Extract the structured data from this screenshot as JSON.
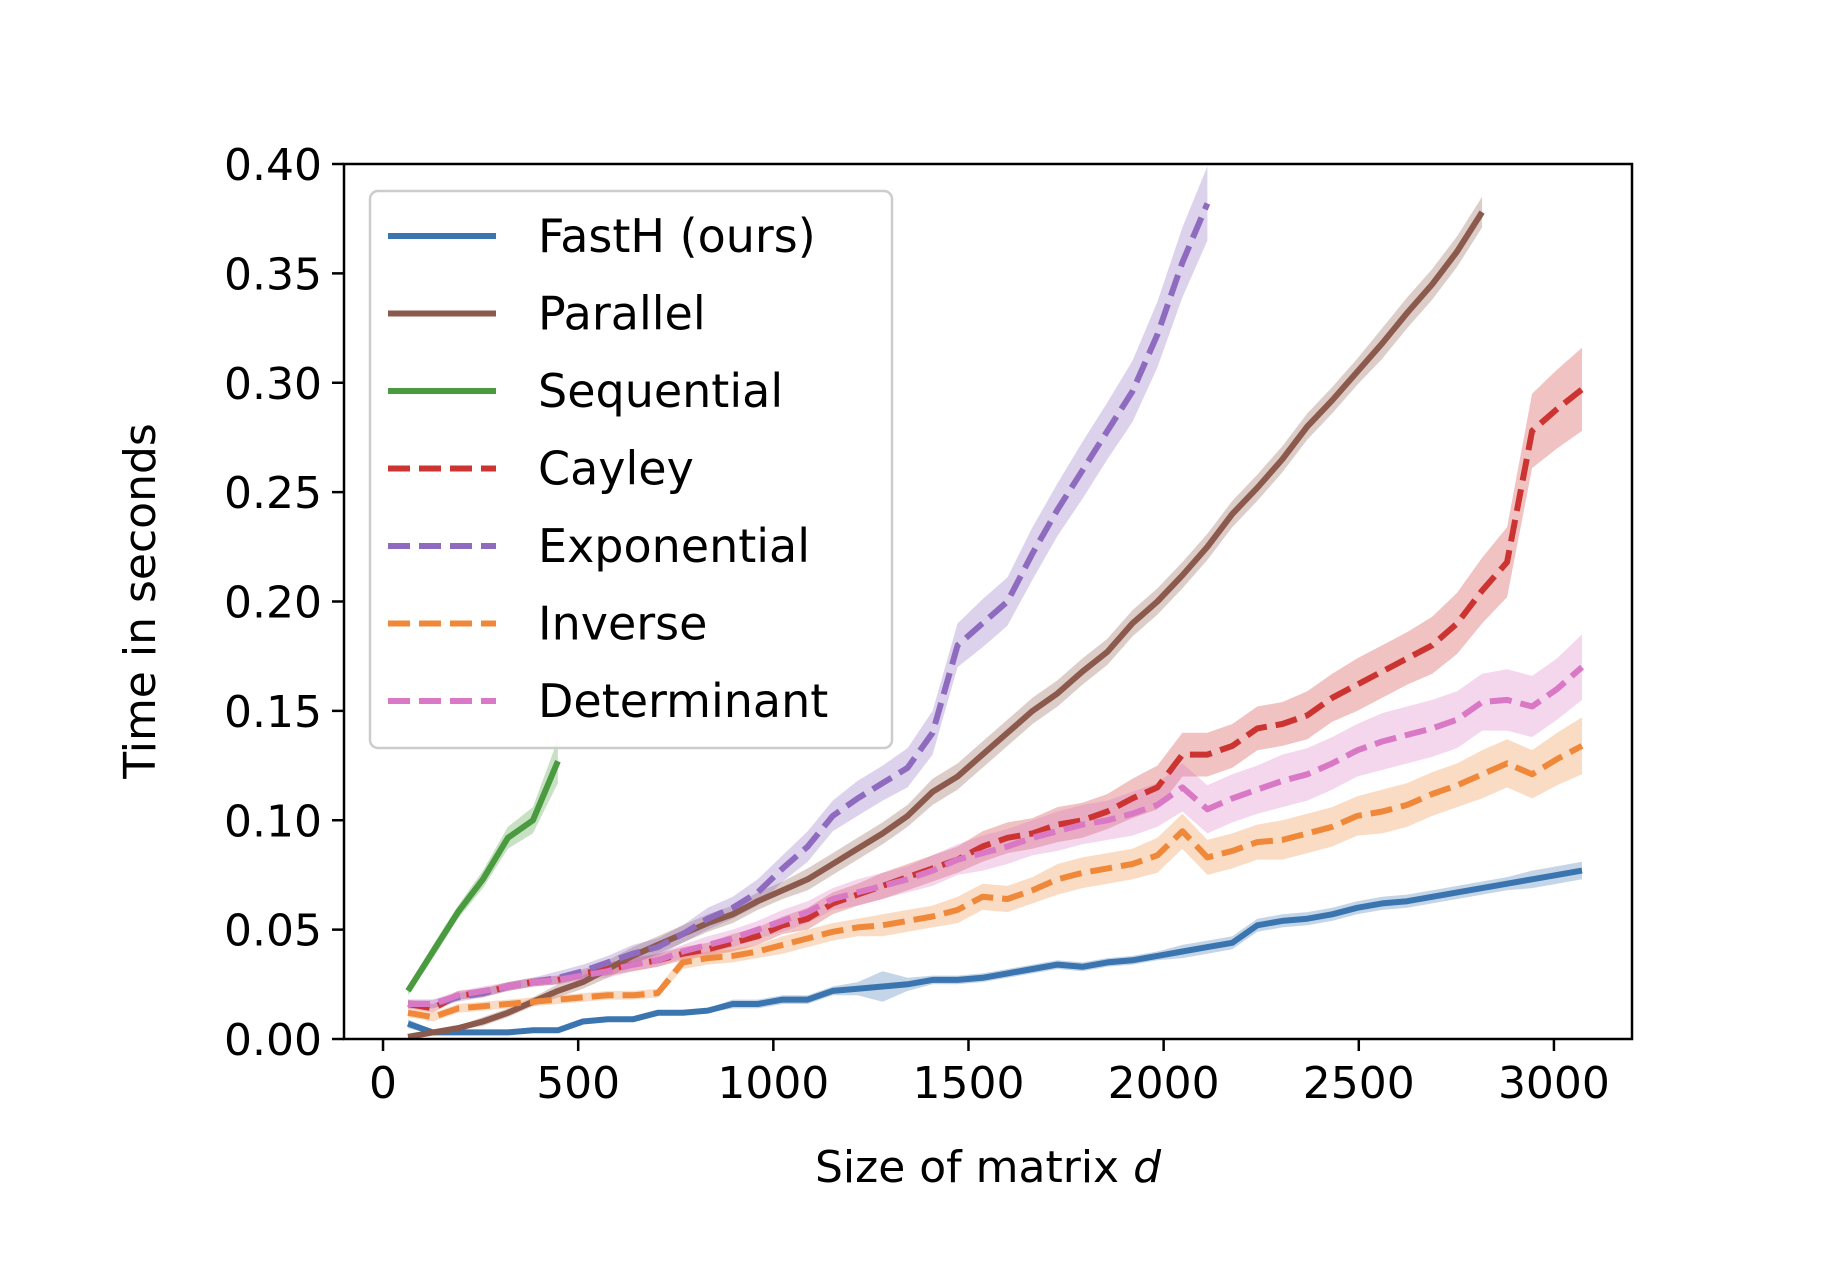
{
  "chart_data": {
    "type": "line",
    "xlabel": "Size of matrix",
    "xlabel_var": "d",
    "ylabel": "Time in seconds",
    "xlim": [
      -100,
      3200
    ],
    "ylim": [
      0,
      0.4
    ],
    "xticks": [
      0,
      500,
      1000,
      1500,
      2000,
      2500,
      3000
    ],
    "yticks": [
      0.0,
      0.05,
      0.1,
      0.15,
      0.2,
      0.25,
      0.3,
      0.35,
      0.4
    ],
    "xtick_labels": [
      "0",
      "500",
      "1000",
      "1500",
      "2000",
      "2500",
      "3000"
    ],
    "ytick_labels": [
      "0.00",
      "0.05",
      "0.10",
      "0.15",
      "0.20",
      "0.25",
      "0.30",
      "0.35",
      "0.40"
    ],
    "grid": false,
    "legend_position": "upper-left",
    "series": [
      {
        "name": "FastH (ours)",
        "color": "#3a75b0",
        "dash": "solid",
        "x": [
          64,
          128,
          192,
          256,
          320,
          384,
          448,
          512,
          576,
          640,
          704,
          768,
          832,
          896,
          960,
          1024,
          1088,
          1152,
          1216,
          1280,
          1344,
          1408,
          1472,
          1536,
          1600,
          1664,
          1728,
          1792,
          1856,
          1920,
          1984,
          2048,
          2112,
          2176,
          2240,
          2304,
          2368,
          2432,
          2496,
          2560,
          2624,
          2688,
          2752,
          2816,
          2880,
          2944,
          3008,
          3072
        ],
        "y": [
          0.007,
          0.003,
          0.003,
          0.003,
          0.003,
          0.004,
          0.004,
          0.008,
          0.009,
          0.009,
          0.012,
          0.012,
          0.013,
          0.016,
          0.016,
          0.018,
          0.018,
          0.022,
          0.023,
          0.024,
          0.025,
          0.027,
          0.027,
          0.028,
          0.03,
          0.032,
          0.034,
          0.033,
          0.035,
          0.036,
          0.038,
          0.04,
          0.042,
          0.044,
          0.052,
          0.054,
          0.055,
          0.057,
          0.06,
          0.062,
          0.063,
          0.065,
          0.067,
          0.069,
          0.071,
          0.073,
          0.075,
          0.077
        ],
        "band": [
          0.002,
          0.001,
          0.001,
          0.001,
          0.001,
          0.001,
          0.001,
          0.001,
          0.001,
          0.001,
          0.001,
          0.001,
          0.001,
          0.002,
          0.002,
          0.002,
          0.002,
          0.002,
          0.003,
          0.007,
          0.003,
          0.002,
          0.002,
          0.002,
          0.002,
          0.002,
          0.002,
          0.002,
          0.002,
          0.002,
          0.002,
          0.003,
          0.003,
          0.003,
          0.003,
          0.003,
          0.003,
          0.003,
          0.003,
          0.003,
          0.003,
          0.003,
          0.003,
          0.003,
          0.003,
          0.004,
          0.004,
          0.004
        ]
      },
      {
        "name": "Parallel",
        "color": "#8b5a4c",
        "dash": "solid",
        "x": [
          64,
          128,
          192,
          256,
          320,
          384,
          448,
          512,
          576,
          640,
          704,
          768,
          832,
          896,
          960,
          1024,
          1088,
          1152,
          1216,
          1280,
          1344,
          1408,
          1472,
          1536,
          1600,
          1664,
          1728,
          1792,
          1856,
          1920,
          1984,
          2048,
          2112,
          2176,
          2240,
          2304,
          2368,
          2432,
          2496,
          2560,
          2624,
          2688,
          2752,
          2816
        ],
        "y": [
          0.001,
          0.003,
          0.005,
          0.008,
          0.012,
          0.017,
          0.022,
          0.026,
          0.032,
          0.038,
          0.043,
          0.048,
          0.053,
          0.057,
          0.063,
          0.068,
          0.073,
          0.08,
          0.087,
          0.094,
          0.102,
          0.113,
          0.12,
          0.13,
          0.14,
          0.15,
          0.158,
          0.168,
          0.177,
          0.19,
          0.2,
          0.212,
          0.225,
          0.24,
          0.252,
          0.265,
          0.28,
          0.292,
          0.305,
          0.318,
          0.332,
          0.345,
          0.36,
          0.378
        ],
        "band": [
          0.001,
          0.001,
          0.001,
          0.002,
          0.002,
          0.002,
          0.003,
          0.003,
          0.004,
          0.004,
          0.004,
          0.004,
          0.004,
          0.004,
          0.004,
          0.004,
          0.005,
          0.005,
          0.005,
          0.005,
          0.005,
          0.006,
          0.006,
          0.006,
          0.006,
          0.006,
          0.006,
          0.006,
          0.006,
          0.006,
          0.006,
          0.006,
          0.006,
          0.006,
          0.006,
          0.006,
          0.006,
          0.006,
          0.006,
          0.007,
          0.007,
          0.007,
          0.007,
          0.007
        ]
      },
      {
        "name": "Sequential",
        "color": "#4a9a3f",
        "dash": "solid",
        "x": [
          64,
          128,
          192,
          256,
          320,
          384,
          448
        ],
        "y": [
          0.022,
          0.04,
          0.058,
          0.073,
          0.092,
          0.1,
          0.127
        ],
        "band": [
          0.002,
          0.003,
          0.003,
          0.004,
          0.005,
          0.006,
          0.01
        ]
      },
      {
        "name": "Cayley",
        "color": "#cc3432",
        "dash": "dashed",
        "x": [
          64,
          128,
          192,
          256,
          320,
          384,
          448,
          512,
          576,
          640,
          704,
          768,
          832,
          896,
          960,
          1024,
          1088,
          1152,
          1216,
          1280,
          1344,
          1408,
          1472,
          1536,
          1600,
          1664,
          1728,
          1792,
          1856,
          1920,
          1984,
          2048,
          2112,
          2176,
          2240,
          2304,
          2368,
          2432,
          2496,
          2560,
          2624,
          2688,
          2752,
          2816,
          2880,
          2944,
          3008,
          3072
        ],
        "y": [
          0.016,
          0.014,
          0.02,
          0.021,
          0.024,
          0.026,
          0.027,
          0.03,
          0.032,
          0.034,
          0.036,
          0.039,
          0.041,
          0.044,
          0.047,
          0.052,
          0.055,
          0.062,
          0.066,
          0.07,
          0.074,
          0.078,
          0.082,
          0.088,
          0.092,
          0.094,
          0.098,
          0.1,
          0.104,
          0.11,
          0.115,
          0.13,
          0.13,
          0.134,
          0.142,
          0.144,
          0.148,
          0.156,
          0.162,
          0.168,
          0.174,
          0.18,
          0.19,
          0.205,
          0.218,
          0.278,
          0.288,
          0.297
        ],
        "band": [
          0.002,
          0.002,
          0.002,
          0.002,
          0.002,
          0.002,
          0.002,
          0.002,
          0.003,
          0.003,
          0.003,
          0.003,
          0.003,
          0.004,
          0.004,
          0.004,
          0.005,
          0.005,
          0.005,
          0.006,
          0.006,
          0.006,
          0.006,
          0.007,
          0.007,
          0.007,
          0.008,
          0.008,
          0.008,
          0.009,
          0.01,
          0.01,
          0.01,
          0.01,
          0.01,
          0.01,
          0.011,
          0.011,
          0.012,
          0.012,
          0.012,
          0.013,
          0.014,
          0.015,
          0.016,
          0.017,
          0.018,
          0.019
        ]
      },
      {
        "name": "Exponential",
        "color": "#8f6bbf",
        "dash": "dashed",
        "x": [
          64,
          128,
          192,
          256,
          320,
          384,
          448,
          512,
          576,
          640,
          704,
          768,
          832,
          896,
          960,
          1024,
          1088,
          1152,
          1216,
          1280,
          1344,
          1408,
          1472,
          1536,
          1600,
          1664,
          1728,
          1792,
          1856,
          1920,
          1984,
          2048,
          2112
        ],
        "y": [
          0.016,
          0.016,
          0.019,
          0.021,
          0.024,
          0.026,
          0.028,
          0.031,
          0.035,
          0.039,
          0.042,
          0.048,
          0.055,
          0.06,
          0.067,
          0.078,
          0.088,
          0.102,
          0.11,
          0.117,
          0.124,
          0.14,
          0.18,
          0.19,
          0.2,
          0.222,
          0.242,
          0.26,
          0.278,
          0.296,
          0.322,
          0.355,
          0.382
        ],
        "band": [
          0.002,
          0.002,
          0.002,
          0.002,
          0.002,
          0.002,
          0.003,
          0.003,
          0.003,
          0.004,
          0.004,
          0.004,
          0.005,
          0.005,
          0.006,
          0.006,
          0.007,
          0.007,
          0.008,
          0.008,
          0.009,
          0.01,
          0.01,
          0.011,
          0.011,
          0.012,
          0.012,
          0.013,
          0.013,
          0.014,
          0.015,
          0.016,
          0.017
        ]
      },
      {
        "name": "Inverse",
        "color": "#f0883a",
        "dash": "dashed",
        "x": [
          64,
          128,
          192,
          256,
          320,
          384,
          448,
          512,
          576,
          640,
          704,
          768,
          832,
          896,
          960,
          1024,
          1088,
          1152,
          1216,
          1280,
          1344,
          1408,
          1472,
          1536,
          1600,
          1664,
          1728,
          1792,
          1856,
          1920,
          1984,
          2048,
          2112,
          2176,
          2240,
          2304,
          2368,
          2432,
          2496,
          2560,
          2624,
          2688,
          2752,
          2816,
          2880,
          2944,
          3008,
          3072
        ],
        "y": [
          0.012,
          0.01,
          0.014,
          0.015,
          0.016,
          0.017,
          0.018,
          0.019,
          0.02,
          0.02,
          0.021,
          0.035,
          0.037,
          0.038,
          0.04,
          0.043,
          0.046,
          0.049,
          0.051,
          0.052,
          0.054,
          0.056,
          0.059,
          0.065,
          0.064,
          0.068,
          0.073,
          0.076,
          0.078,
          0.08,
          0.084,
          0.095,
          0.083,
          0.086,
          0.09,
          0.091,
          0.094,
          0.097,
          0.102,
          0.104,
          0.107,
          0.112,
          0.116,
          0.121,
          0.126,
          0.121,
          0.128,
          0.134
        ],
        "band": [
          0.002,
          0.002,
          0.002,
          0.002,
          0.002,
          0.002,
          0.002,
          0.002,
          0.002,
          0.002,
          0.002,
          0.003,
          0.003,
          0.003,
          0.003,
          0.004,
          0.004,
          0.004,
          0.004,
          0.005,
          0.005,
          0.005,
          0.006,
          0.006,
          0.006,
          0.006,
          0.007,
          0.007,
          0.007,
          0.007,
          0.008,
          0.008,
          0.008,
          0.008,
          0.008,
          0.009,
          0.009,
          0.009,
          0.009,
          0.01,
          0.01,
          0.01,
          0.01,
          0.011,
          0.011,
          0.011,
          0.012,
          0.013
        ]
      },
      {
        "name": "Determinant",
        "color": "#d978c4",
        "dash": "dashed",
        "x": [
          64,
          128,
          192,
          256,
          320,
          384,
          448,
          512,
          576,
          640,
          704,
          768,
          832,
          896,
          960,
          1024,
          1088,
          1152,
          1216,
          1280,
          1344,
          1408,
          1472,
          1536,
          1600,
          1664,
          1728,
          1792,
          1856,
          1920,
          1984,
          2048,
          2112,
          2176,
          2240,
          2304,
          2368,
          2432,
          2496,
          2560,
          2624,
          2688,
          2752,
          2816,
          2880,
          2944,
          3008,
          3072
        ],
        "y": [
          0.016,
          0.016,
          0.02,
          0.022,
          0.024,
          0.026,
          0.027,
          0.029,
          0.031,
          0.034,
          0.036,
          0.04,
          0.043,
          0.046,
          0.05,
          0.054,
          0.058,
          0.064,
          0.067,
          0.07,
          0.073,
          0.077,
          0.082,
          0.085,
          0.088,
          0.092,
          0.095,
          0.098,
          0.1,
          0.103,
          0.107,
          0.115,
          0.105,
          0.11,
          0.114,
          0.118,
          0.121,
          0.126,
          0.132,
          0.136,
          0.139,
          0.142,
          0.146,
          0.154,
          0.155,
          0.152,
          0.16,
          0.17
        ],
        "band": [
          0.002,
          0.002,
          0.002,
          0.002,
          0.002,
          0.002,
          0.002,
          0.002,
          0.003,
          0.003,
          0.003,
          0.003,
          0.004,
          0.004,
          0.004,
          0.005,
          0.005,
          0.005,
          0.006,
          0.006,
          0.006,
          0.007,
          0.007,
          0.008,
          0.008,
          0.008,
          0.009,
          0.009,
          0.009,
          0.01,
          0.01,
          0.011,
          0.011,
          0.011,
          0.011,
          0.012,
          0.012,
          0.012,
          0.012,
          0.013,
          0.013,
          0.013,
          0.013,
          0.013,
          0.014,
          0.014,
          0.014,
          0.015
        ]
      }
    ]
  }
}
